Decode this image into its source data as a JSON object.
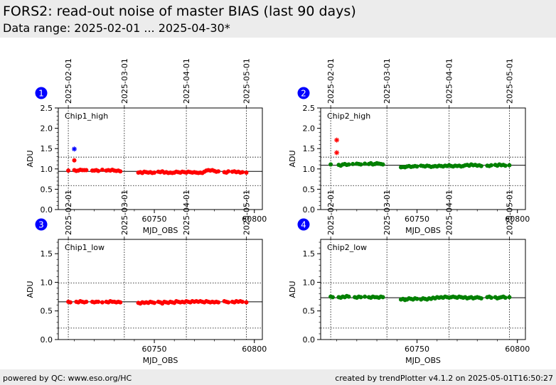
{
  "header": {
    "title": "FORS2: read-out noise of master BIAS (last 90 days)",
    "subtitle": "Data range: 2025-02-01 ... 2025-04-30*"
  },
  "footer": {
    "left": "powered by QC: www.eso.org/HC",
    "right": "created by trendPlotter v4.1.2 on 2025-05-01T16:50:27"
  },
  "colors": {
    "chip1": "#ff0000",
    "chip2": "#008000",
    "outlier": "#0000ff",
    "badge": "#0000ff"
  },
  "chart_data": [
    {
      "type": "scatter",
      "badge": "1",
      "label": "Chip1_high",
      "xlabel": "MJD_OBS",
      "ylabel": "ADU",
      "xlim": [
        60702,
        60804
      ],
      "ylim": [
        0,
        2.5
      ],
      "yticks": [
        "0.0",
        "0.5",
        "1.0",
        "1.5",
        "2.0",
        "2.5"
      ],
      "xticks": [
        "60750",
        "60800"
      ],
      "date_ticks": [
        {
          "mjd": 60707,
          "label": "2025-02-01"
        },
        {
          "mjd": 60735,
          "label": "2025-03-01"
        },
        {
          "mjd": 60766,
          "label": "2025-04-01"
        },
        {
          "mjd": 60796,
          "label": "2025-05-01"
        }
      ],
      "reference": 0.94,
      "limits": [
        1.29,
        0.59
      ],
      "color": "#ff0000",
      "series": [
        {
          "x": [
            60707,
            60710,
            60711,
            60712,
            60713,
            60714,
            60715,
            60716,
            60719,
            60720,
            60721,
            60722,
            60724,
            60726,
            60727,
            60728,
            60729,
            60730,
            60731,
            60732,
            60733,
            60742,
            60743,
            60744,
            60745,
            60746,
            60747,
            60748,
            60749,
            60750,
            60752,
            60753,
            60754,
            60755,
            60756,
            60757,
            60758,
            60759,
            60760,
            60761,
            60762,
            60763,
            60764,
            60765,
            60766,
            60767,
            60768,
            60769,
            60770,
            60771,
            60772,
            60773,
            60774,
            60775,
            60776,
            60777,
            60778,
            60779,
            60780,
            60781,
            60782,
            60785,
            60786,
            60787,
            60789,
            60790,
            60791,
            60792,
            60793,
            60794,
            60796
          ],
          "y": [
            0.96,
            0.97,
            0.95,
            0.96,
            0.98,
            0.97,
            0.97,
            0.97,
            0.96,
            0.96,
            0.97,
            0.95,
            0.98,
            0.96,
            0.97,
            0.96,
            0.98,
            0.96,
            0.95,
            0.96,
            0.94,
            0.91,
            0.92,
            0.9,
            0.93,
            0.92,
            0.91,
            0.92,
            0.9,
            0.91,
            0.93,
            0.92,
            0.94,
            0.91,
            0.92,
            0.9,
            0.91,
            0.9,
            0.91,
            0.93,
            0.92,
            0.91,
            0.93,
            0.92,
            0.91,
            0.93,
            0.92,
            0.91,
            0.92,
            0.91,
            0.9,
            0.91,
            0.9,
            0.93,
            0.96,
            0.97,
            0.96,
            0.97,
            0.95,
            0.93,
            0.94,
            0.92,
            0.91,
            0.94,
            0.93,
            0.94,
            0.92,
            0.93,
            0.91,
            0.92,
            0.91
          ]
        },
        {
          "x": [
            60710
          ],
          "y": [
            1.21
          ]
        }
      ],
      "outliers": {
        "x": [
          60710
        ],
        "y": [
          1.49
        ]
      }
    },
    {
      "type": "scatter",
      "badge": "2",
      "label": "Chip2_high",
      "xlabel": "MJD_OBS",
      "ylabel": "ADU",
      "xlim": [
        60702,
        60804
      ],
      "ylim": [
        0,
        2.5
      ],
      "yticks": [
        "0.0",
        "0.5",
        "1.0",
        "1.5",
        "2.0",
        "2.5"
      ],
      "xticks": [
        "60750",
        "60800"
      ],
      "date_ticks": [
        {
          "mjd": 60707,
          "label": "2025-02-01"
        },
        {
          "mjd": 60735,
          "label": "2025-03-01"
        },
        {
          "mjd": 60766,
          "label": "2025-04-01"
        },
        {
          "mjd": 60796,
          "label": "2025-05-01"
        }
      ],
      "reference": 1.09,
      "limits": [
        1.29,
        0.59
      ],
      "color": "#008000",
      "series": [
        {
          "x": [
            60707,
            60711,
            60712,
            60713,
            60714,
            60715,
            60716,
            60718,
            60720,
            60721,
            60722,
            60724,
            60726,
            60727,
            60728,
            60729,
            60730,
            60731,
            60732,
            60733,
            60742,
            60743,
            60744,
            60745,
            60746,
            60747,
            60748,
            60749,
            60750,
            60752,
            60753,
            60754,
            60755,
            60756,
            60757,
            60758,
            60759,
            60760,
            60761,
            60762,
            60763,
            60764,
            60765,
            60766,
            60767,
            60768,
            60769,
            60770,
            60771,
            60772,
            60773,
            60774,
            60775,
            60776,
            60777,
            60778,
            60779,
            60780,
            60781,
            60782,
            60785,
            60786,
            60787,
            60789,
            60790,
            60791,
            60792,
            60793,
            60794,
            60796
          ],
          "y": [
            1.11,
            1.1,
            1.08,
            1.11,
            1.12,
            1.1,
            1.11,
            1.12,
            1.13,
            1.12,
            1.11,
            1.13,
            1.12,
            1.14,
            1.11,
            1.12,
            1.14,
            1.13,
            1.12,
            1.11,
            1.04,
            1.05,
            1.04,
            1.06,
            1.07,
            1.05,
            1.06,
            1.07,
            1.06,
            1.08,
            1.07,
            1.06,
            1.08,
            1.07,
            1.05,
            1.06,
            1.07,
            1.06,
            1.08,
            1.07,
            1.06,
            1.08,
            1.07,
            1.09,
            1.07,
            1.06,
            1.08,
            1.07,
            1.08,
            1.06,
            1.07,
            1.09,
            1.1,
            1.08,
            1.11,
            1.09,
            1.1,
            1.08,
            1.09,
            1.07,
            1.08,
            1.07,
            1.09,
            1.1,
            1.08,
            1.11,
            1.09,
            1.1,
            1.08,
            1.09
          ]
        }
      ],
      "outliers": {
        "x": [
          60710,
          60710
        ],
        "y": [
          1.71,
          1.4
        ]
      }
    },
    {
      "type": "scatter",
      "badge": "3",
      "label": "Chip1_low",
      "xlabel": "MJD_OBS",
      "ylabel": "ADU",
      "xlim": [
        60702,
        60804
      ],
      "ylim": [
        0,
        1.75
      ],
      "yticks": [
        "0.0",
        "0.5",
        "1.0",
        "1.5"
      ],
      "xticks": [
        "60750",
        "60800"
      ],
      "date_ticks": [
        {
          "mjd": 60707,
          "label": "2025-02-01"
        },
        {
          "mjd": 60735,
          "label": "2025-03-01"
        },
        {
          "mjd": 60766,
          "label": "2025-04-01"
        },
        {
          "mjd": 60796,
          "label": "2025-05-01"
        }
      ],
      "reference": 0.66,
      "limits": [
        0.99,
        0.2
      ],
      "color": "#ff0000",
      "series": [
        {
          "x": [
            60707,
            60708,
            60711,
            60712,
            60713,
            60714,
            60715,
            60716,
            60719,
            60720,
            60721,
            60722,
            60724,
            60726,
            60727,
            60728,
            60729,
            60730,
            60731,
            60732,
            60733,
            60742,
            60743,
            60744,
            60745,
            60746,
            60747,
            60748,
            60749,
            60750,
            60752,
            60753,
            60754,
            60755,
            60756,
            60757,
            60758,
            60759,
            60760,
            60761,
            60762,
            60763,
            60764,
            60765,
            60766,
            60767,
            60768,
            60769,
            60770,
            60771,
            60772,
            60773,
            60774,
            60775,
            60776,
            60777,
            60778,
            60779,
            60780,
            60781,
            60782,
            60785,
            60786,
            60787,
            60789,
            60790,
            60791,
            60792,
            60793,
            60794,
            60796
          ],
          "y": [
            0.66,
            0.65,
            0.66,
            0.65,
            0.67,
            0.66,
            0.65,
            0.66,
            0.66,
            0.65,
            0.66,
            0.66,
            0.65,
            0.66,
            0.65,
            0.67,
            0.66,
            0.66,
            0.65,
            0.66,
            0.65,
            0.64,
            0.63,
            0.65,
            0.64,
            0.65,
            0.64,
            0.66,
            0.65,
            0.64,
            0.66,
            0.65,
            0.63,
            0.66,
            0.65,
            0.64,
            0.66,
            0.65,
            0.64,
            0.67,
            0.66,
            0.65,
            0.66,
            0.65,
            0.67,
            0.66,
            0.65,
            0.67,
            0.66,
            0.67,
            0.66,
            0.67,
            0.66,
            0.65,
            0.67,
            0.66,
            0.65,
            0.66,
            0.65,
            0.66,
            0.65,
            0.67,
            0.66,
            0.65,
            0.66,
            0.65,
            0.67,
            0.66,
            0.67,
            0.66,
            0.65
          ]
        }
      ],
      "outliers": {
        "x": [],
        "y": []
      }
    },
    {
      "type": "scatter",
      "badge": "4",
      "label": "Chip2_low",
      "xlabel": "MJD_OBS",
      "ylabel": "ADU",
      "xlim": [
        60702,
        60804
      ],
      "ylim": [
        0,
        1.75
      ],
      "yticks": [
        "0.0",
        "0.5",
        "1.0",
        "1.5"
      ],
      "xticks": [
        "60750",
        "60800"
      ],
      "date_ticks": [
        {
          "mjd": 60707,
          "label": "2025-02-01"
        },
        {
          "mjd": 60735,
          "label": "2025-03-01"
        },
        {
          "mjd": 60766,
          "label": "2025-04-01"
        },
        {
          "mjd": 60796,
          "label": "2025-05-01"
        }
      ],
      "reference": 0.73,
      "limits": [
        0.99,
        0.2
      ],
      "color": "#008000",
      "series": [
        {
          "x": [
            60707,
            60708,
            60711,
            60712,
            60713,
            60714,
            60715,
            60716,
            60719,
            60720,
            60721,
            60722,
            60724,
            60726,
            60727,
            60728,
            60729,
            60730,
            60731,
            60732,
            60733,
            60742,
            60743,
            60744,
            60745,
            60746,
            60747,
            60748,
            60749,
            60750,
            60752,
            60753,
            60754,
            60755,
            60756,
            60757,
            60758,
            60759,
            60760,
            60761,
            60762,
            60763,
            60764,
            60765,
            60766,
            60767,
            60768,
            60769,
            60770,
            60771,
            60772,
            60773,
            60774,
            60775,
            60776,
            60777,
            60778,
            60779,
            60780,
            60781,
            60782,
            60785,
            60786,
            60787,
            60789,
            60790,
            60791,
            60792,
            60793,
            60794,
            60796
          ],
          "y": [
            0.75,
            0.74,
            0.74,
            0.73,
            0.75,
            0.74,
            0.76,
            0.75,
            0.74,
            0.73,
            0.75,
            0.74,
            0.75,
            0.74,
            0.73,
            0.75,
            0.74,
            0.74,
            0.73,
            0.75,
            0.74,
            0.7,
            0.71,
            0.69,
            0.7,
            0.72,
            0.71,
            0.7,
            0.72,
            0.71,
            0.7,
            0.72,
            0.71,
            0.7,
            0.72,
            0.71,
            0.73,
            0.72,
            0.74,
            0.73,
            0.74,
            0.73,
            0.75,
            0.74,
            0.73,
            0.74,
            0.75,
            0.74,
            0.73,
            0.75,
            0.74,
            0.73,
            0.74,
            0.72,
            0.73,
            0.74,
            0.72,
            0.73,
            0.74,
            0.73,
            0.72,
            0.74,
            0.75,
            0.73,
            0.74,
            0.72,
            0.73,
            0.74,
            0.75,
            0.73,
            0.74
          ]
        }
      ],
      "outliers": {
        "x": [],
        "y": []
      }
    }
  ]
}
